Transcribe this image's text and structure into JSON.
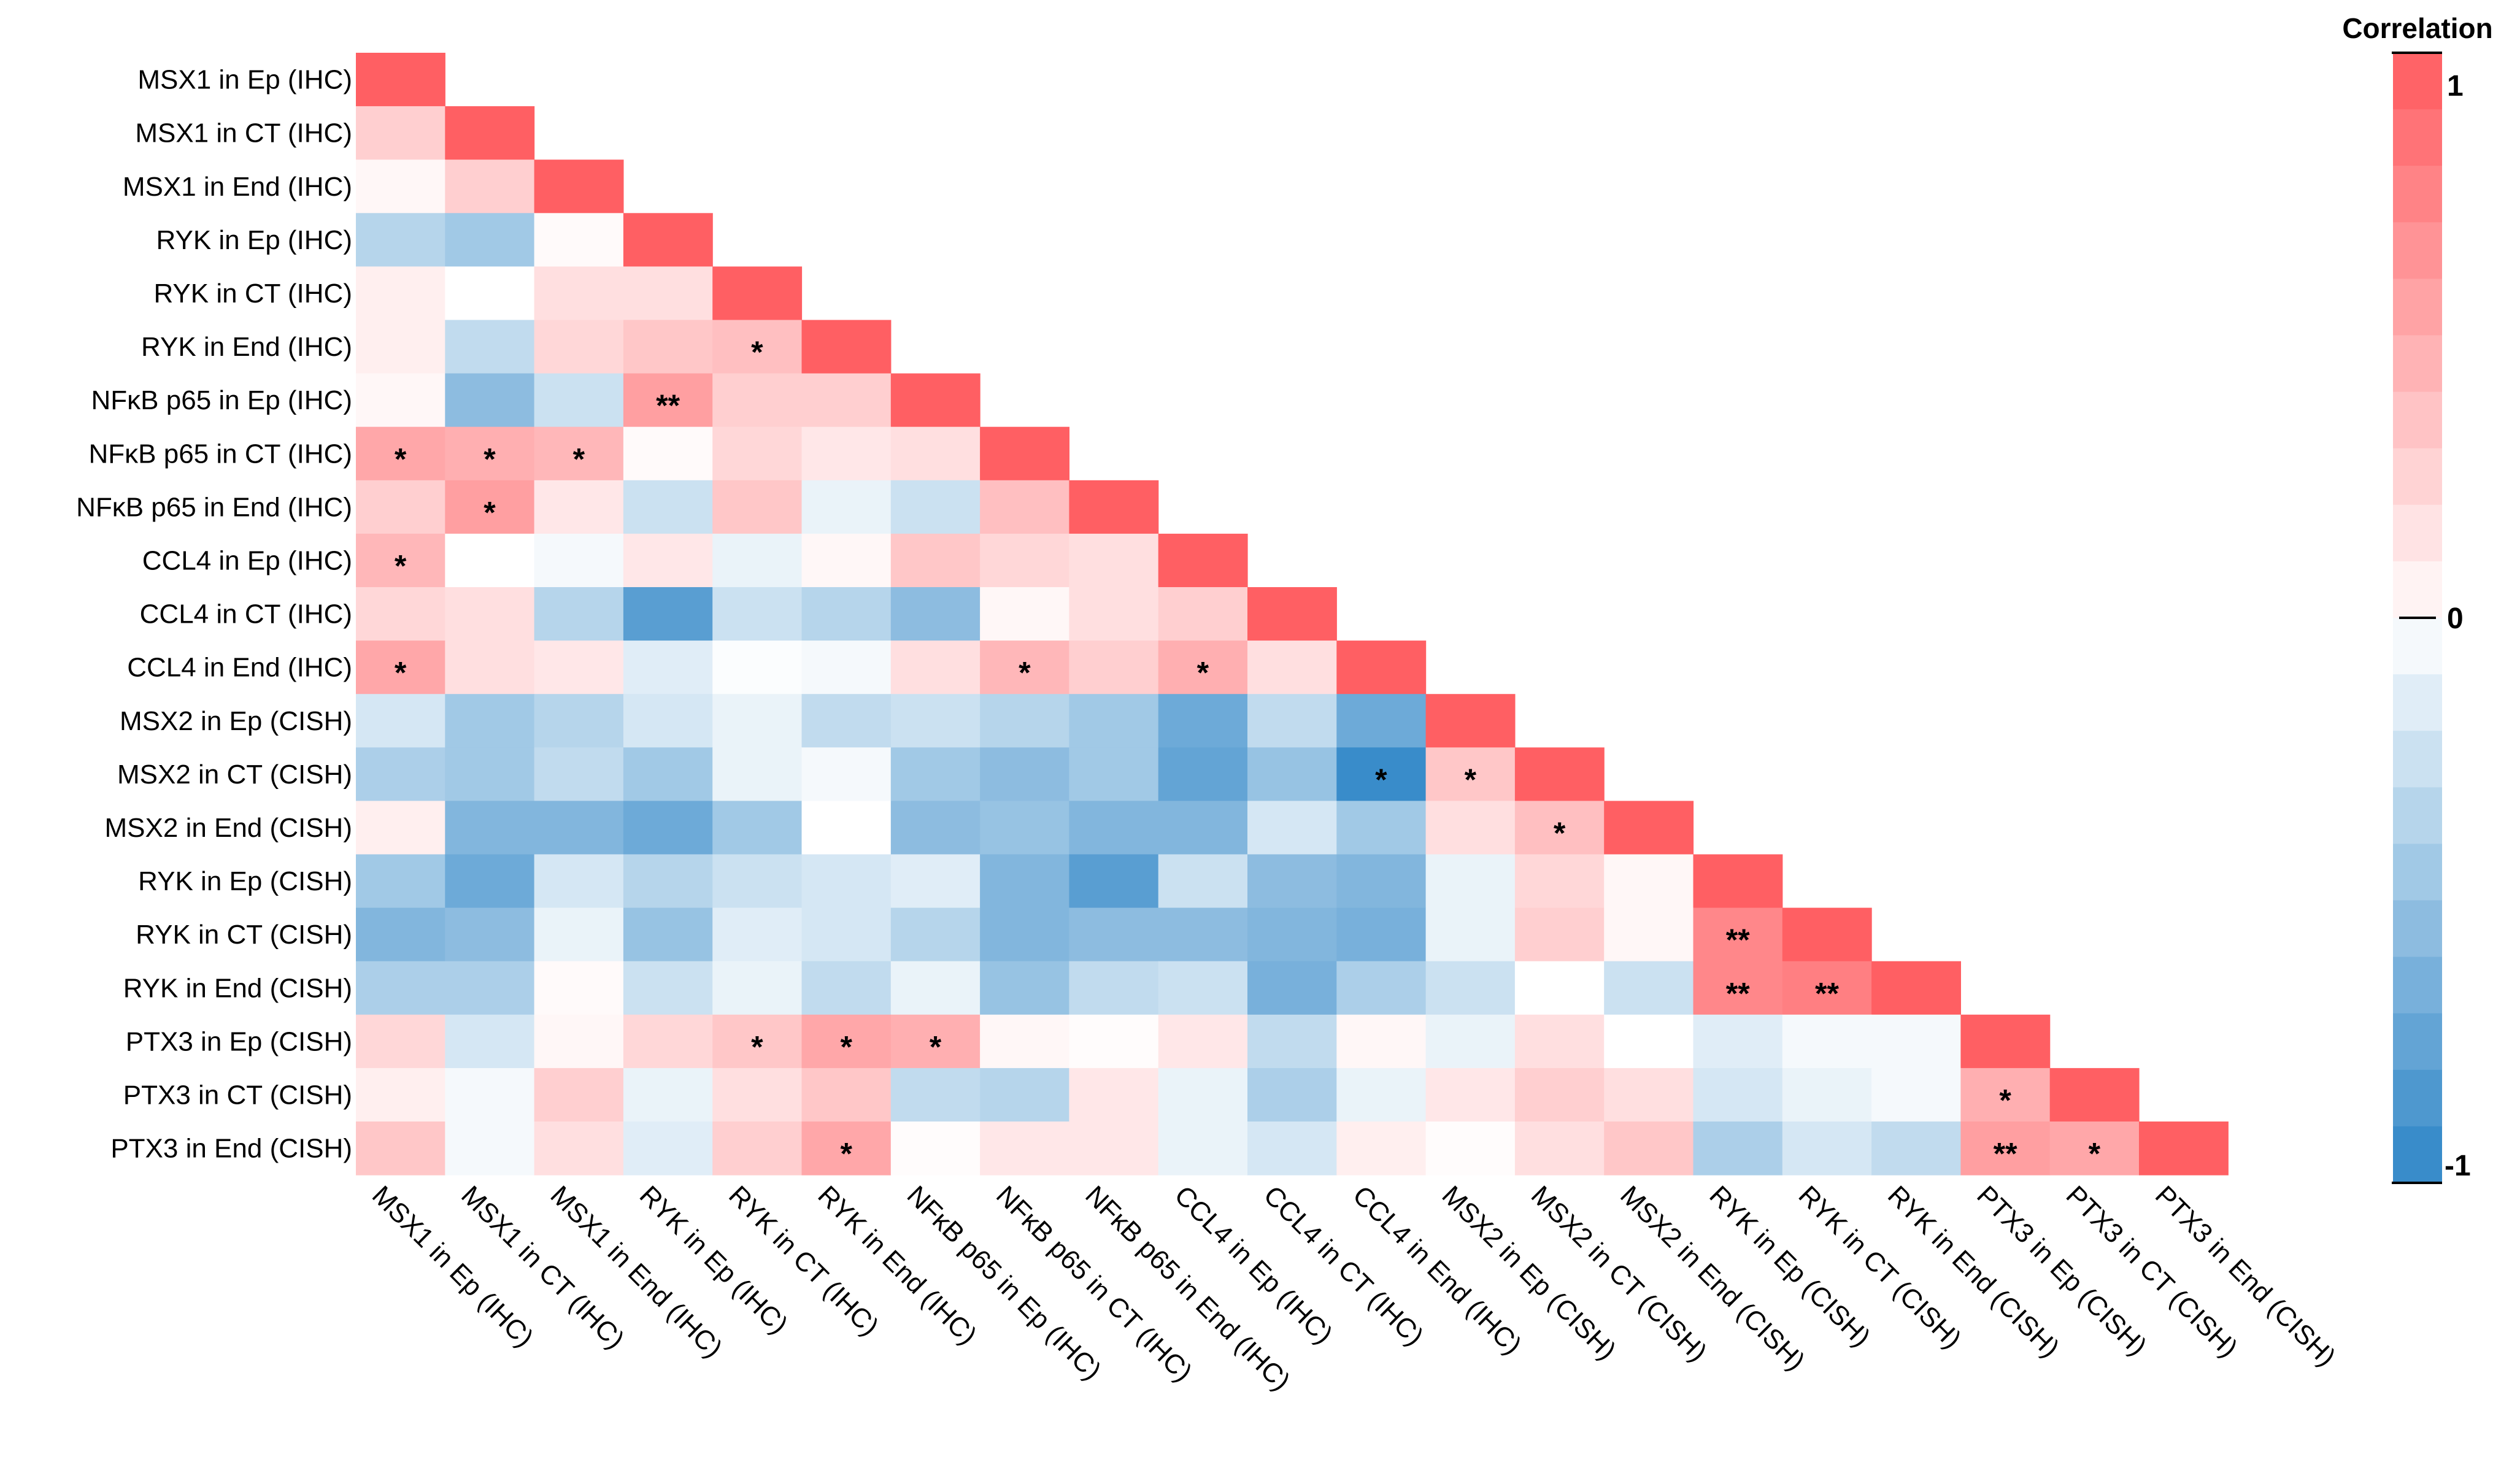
{
  "chart_data": {
    "type": "heatmap",
    "subtype": "lower-triangular correlation matrix",
    "labels": [
      "MSX1 in Ep (IHC)",
      "MSX1 in CT (IHC)",
      "MSX1 in End (IHC)",
      "RYK in Ep (IHC)",
      "RYK in CT (IHC)",
      "RYK in End (IHC)",
      "NFκB p65 in Ep (IHC)",
      "NFκB p65 in CT (IHC)",
      "NFκB p65 in End (IHC)",
      "CCL4 in Ep (IHC)",
      "CCL4 in CT (IHC)",
      "CCL4 in End (IHC)",
      "MSX2 in Ep (CISH)",
      "MSX2 in CT (CISH)",
      "MSX2 in End (CISH)",
      "RYK in Ep (CISH)",
      "RYK in CT (CISH)",
      "RYK in End (CISH)",
      "PTX3 in Ep (CISH)",
      "PTX3 in CT (CISH)",
      "PTX3 in End (CISH)"
    ],
    "values": [
      [
        1.0
      ],
      [
        0.3,
        1.0
      ],
      [
        0.05,
        0.3,
        1.0
      ],
      [
        -0.35,
        -0.45,
        0.03,
        1.0
      ],
      [
        0.1,
        0.0,
        0.2,
        0.2,
        1.0
      ],
      [
        0.1,
        -0.3,
        0.25,
        0.35,
        0.4,
        1.0
      ],
      [
        0.05,
        -0.55,
        -0.25,
        0.6,
        0.3,
        0.3,
        1.0
      ],
      [
        0.55,
        0.5,
        0.45,
        0.03,
        0.25,
        0.15,
        0.2,
        1.0
      ],
      [
        0.3,
        0.6,
        0.15,
        -0.25,
        0.35,
        -0.1,
        -0.25,
        0.4,
        1.0
      ],
      [
        0.45,
        0.0,
        -0.05,
        0.15,
        -0.1,
        0.05,
        0.35,
        0.25,
        0.2,
        1.0
      ],
      [
        0.25,
        0.2,
        -0.35,
        -0.8,
        -0.25,
        -0.35,
        -0.55,
        0.05,
        0.2,
        0.3,
        1.0
      ],
      [
        0.55,
        0.2,
        0.15,
        -0.15,
        -0.02,
        -0.05,
        0.2,
        0.45,
        0.3,
        0.5,
        0.2,
        1.0
      ],
      [
        -0.2,
        -0.45,
        -0.35,
        -0.2,
        -0.1,
        -0.3,
        -0.25,
        -0.35,
        -0.45,
        -0.7,
        -0.3,
        -0.7,
        1.0
      ],
      [
        -0.4,
        -0.45,
        -0.3,
        -0.45,
        -0.1,
        -0.05,
        -0.45,
        -0.55,
        -0.45,
        -0.75,
        -0.5,
        -0.95,
        0.35,
        1.0
      ],
      [
        0.1,
        -0.6,
        -0.6,
        -0.7,
        -0.45,
        0.0,
        -0.55,
        -0.5,
        -0.6,
        -0.6,
        -0.2,
        -0.45,
        0.2,
        0.4,
        1.0
      ],
      [
        -0.45,
        -0.7,
        -0.2,
        -0.35,
        -0.25,
        -0.2,
        -0.15,
        -0.6,
        -0.8,
        -0.25,
        -0.55,
        -0.6,
        -0.1,
        0.25,
        0.05,
        1.0
      ],
      [
        -0.6,
        -0.55,
        -0.1,
        -0.5,
        -0.15,
        -0.2,
        -0.35,
        -0.6,
        -0.55,
        -0.55,
        -0.6,
        -0.65,
        -0.1,
        0.3,
        0.05,
        0.75,
        1.0
      ],
      [
        -0.4,
        -0.4,
        0.03,
        -0.25,
        -0.1,
        -0.3,
        -0.1,
        -0.5,
        -0.3,
        -0.25,
        -0.65,
        -0.4,
        -0.25,
        0.0,
        -0.25,
        0.75,
        0.8,
        1.0
      ],
      [
        0.25,
        -0.2,
        0.05,
        0.25,
        0.35,
        0.55,
        0.5,
        0.05,
        0.02,
        0.15,
        -0.3,
        0.05,
        -0.1,
        0.2,
        0.0,
        -0.15,
        -0.05,
        -0.05,
        1.0
      ],
      [
        0.1,
        -0.05,
        0.3,
        -0.1,
        0.2,
        0.35,
        -0.3,
        -0.35,
        0.15,
        -0.1,
        -0.4,
        -0.1,
        0.15,
        0.3,
        0.2,
        -0.2,
        -0.1,
        -0.05,
        0.5,
        1.0
      ],
      [
        0.35,
        -0.05,
        0.2,
        -0.15,
        0.3,
        0.55,
        0.02,
        0.15,
        0.15,
        -0.1,
        -0.2,
        0.1,
        0.02,
        0.2,
        0.35,
        -0.4,
        -0.2,
        -0.3,
        0.6,
        0.55,
        1.0
      ]
    ],
    "significance": [
      {
        "row": 5,
        "col": 4,
        "mark": "*"
      },
      {
        "row": 6,
        "col": 3,
        "mark": "**"
      },
      {
        "row": 7,
        "col": 0,
        "mark": "*"
      },
      {
        "row": 7,
        "col": 1,
        "mark": "*"
      },
      {
        "row": 7,
        "col": 2,
        "mark": "*"
      },
      {
        "row": 8,
        "col": 1,
        "mark": "*"
      },
      {
        "row": 9,
        "col": 0,
        "mark": "*"
      },
      {
        "row": 11,
        "col": 0,
        "mark": "*"
      },
      {
        "row": 11,
        "col": 7,
        "mark": "*"
      },
      {
        "row": 11,
        "col": 9,
        "mark": "*"
      },
      {
        "row": 13,
        "col": 11,
        "mark": "*"
      },
      {
        "row": 13,
        "col": 12,
        "mark": "*"
      },
      {
        "row": 14,
        "col": 13,
        "mark": "*"
      },
      {
        "row": 16,
        "col": 15,
        "mark": "**"
      },
      {
        "row": 17,
        "col": 15,
        "mark": "**"
      },
      {
        "row": 17,
        "col": 16,
        "mark": "**"
      },
      {
        "row": 18,
        "col": 4,
        "mark": "*"
      },
      {
        "row": 18,
        "col": 5,
        "mark": "*"
      },
      {
        "row": 18,
        "col": 6,
        "mark": "*"
      },
      {
        "row": 19,
        "col": 18,
        "mark": "*"
      },
      {
        "row": 20,
        "col": 5,
        "mark": "*"
      },
      {
        "row": 20,
        "col": 18,
        "mark": "**"
      },
      {
        "row": 20,
        "col": 19,
        "mark": "*"
      }
    ],
    "legend": {
      "title": "Correlation",
      "ticks": [
        "1",
        "0",
        "-1"
      ],
      "range": [
        -1,
        1
      ],
      "steps_per_side": 10,
      "colors": {
        "positive": "#ff5f63",
        "negative": "#2f86c7",
        "zero": "#ffffff"
      }
    },
    "xlabel": "",
    "ylabel": ""
  }
}
